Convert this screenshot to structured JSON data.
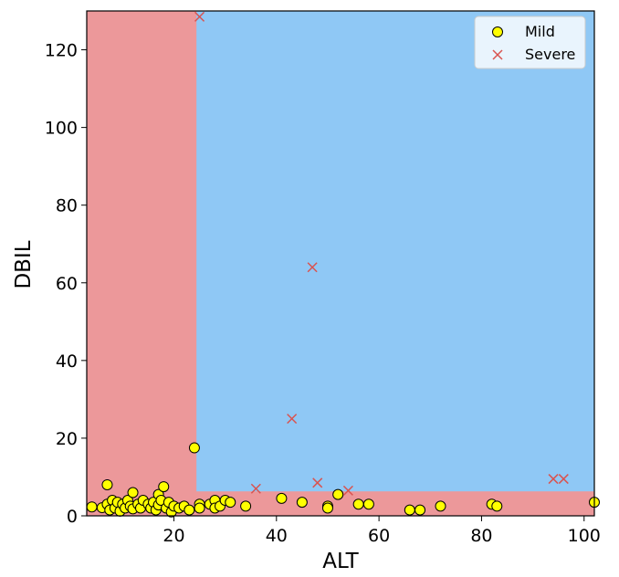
{
  "chart_data": {
    "type": "scatter",
    "xlabel": "ALT",
    "ylabel": "DBIL",
    "xlim": [
      3,
      102
    ],
    "ylim": [
      0,
      130
    ],
    "xticks": [
      20,
      40,
      60,
      80,
      100
    ],
    "yticks": [
      0,
      20,
      40,
      60,
      80,
      100,
      120
    ],
    "legend_position": "top-right",
    "regions": [
      {
        "name": "Mild-region",
        "color": "#ec989a",
        "x": [
          3,
          102
        ],
        "y": [
          0,
          130
        ]
      },
      {
        "name": "Severe-region",
        "color": "#8fc8f5",
        "x": [
          24.4,
          102
        ],
        "y": [
          6.3,
          130
        ]
      }
    ],
    "series": [
      {
        "name": "Mild",
        "marker": "circle",
        "color": "#ffff00",
        "edge": "#000000",
        "points": [
          [
            4,
            2.3
          ],
          [
            6,
            2.1
          ],
          [
            7,
            8.0
          ],
          [
            7,
            3.0
          ],
          [
            7.5,
            1.5
          ],
          [
            8,
            4.0
          ],
          [
            8.5,
            2.0
          ],
          [
            9,
            3.5
          ],
          [
            9.5,
            1.2
          ],
          [
            10,
            3.0
          ],
          [
            10.5,
            2.0
          ],
          [
            11,
            4.0
          ],
          [
            11.5,
            2.5
          ],
          [
            12,
            6.0
          ],
          [
            12,
            1.8
          ],
          [
            13,
            3.0
          ],
          [
            13.5,
            2.0
          ],
          [
            14,
            4.0
          ],
          [
            15,
            3.0
          ],
          [
            15.5,
            2.0
          ],
          [
            16,
            3.5
          ],
          [
            16.5,
            1.5
          ],
          [
            17,
            5.5
          ],
          [
            17,
            2.8
          ],
          [
            17.5,
            4.0
          ],
          [
            18,
            7.5
          ],
          [
            18.5,
            2.0
          ],
          [
            19,
            3.5
          ],
          [
            19.5,
            1.0
          ],
          [
            20,
            2.5
          ],
          [
            21,
            2.0
          ],
          [
            22,
            2.5
          ],
          [
            23,
            1.5
          ],
          [
            24,
            17.5
          ],
          [
            25,
            3.0
          ],
          [
            25,
            2.0
          ],
          [
            27,
            3.0
          ],
          [
            28,
            4.0
          ],
          [
            28,
            2.0
          ],
          [
            29,
            2.5
          ],
          [
            30,
            4.0
          ],
          [
            31,
            3.5
          ],
          [
            34,
            2.5
          ],
          [
            41,
            4.5
          ],
          [
            45,
            3.5
          ],
          [
            50,
            2.5
          ],
          [
            50,
            2.0
          ],
          [
            52,
            5.5
          ],
          [
            56,
            3.0
          ],
          [
            58,
            3.0
          ],
          [
            66,
            1.5
          ],
          [
            68,
            1.5
          ],
          [
            72,
            2.5
          ],
          [
            82,
            3.0
          ],
          [
            83,
            2.5
          ],
          [
            102,
            3.5
          ]
        ]
      },
      {
        "name": "Severe",
        "marker": "x",
        "color": "#d9534f",
        "points": [
          [
            25,
            128.5
          ],
          [
            36,
            7.0
          ],
          [
            43,
            25.0
          ],
          [
            47,
            64.0
          ],
          [
            48,
            8.5
          ],
          [
            54,
            6.5
          ],
          [
            94,
            9.5
          ],
          [
            96,
            9.5
          ]
        ]
      }
    ]
  }
}
